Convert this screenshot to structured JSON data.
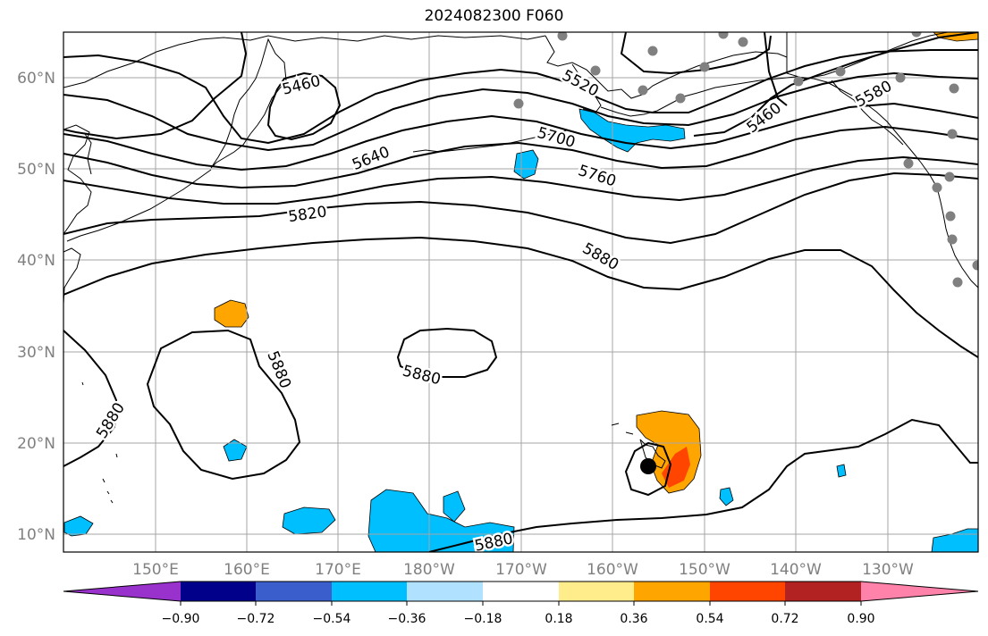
{
  "title": "2024082300 F060",
  "map": {
    "lat_labels": [
      "60°N",
      "50°N",
      "40°N",
      "30°N",
      "20°N",
      "10°N"
    ],
    "lon_labels": [
      "150°E",
      "160°E",
      "170°E",
      "180°W",
      "170°W",
      "160°W",
      "150°W",
      "140°W",
      "130°W"
    ],
    "contour_labels": [
      "5460",
      "5520",
      "5460",
      "5580",
      "5640",
      "5700",
      "5760",
      "5820",
      "5880",
      "5880",
      "5880",
      "5880",
      "5880"
    ],
    "colors": {
      "negative": "#00bfff",
      "positive": "#ffa500",
      "strong_positive": "#ff4500",
      "contour": "#000000",
      "station_marker": "#808080",
      "storm_marker": "#000000"
    }
  },
  "colorbar": {
    "colors": [
      "#9932cc",
      "#00008b",
      "#3a5fcd",
      "#00bfff",
      "#b0e2ff",
      "#ffffff",
      "#ffec8b",
      "#ffa500",
      "#ff4500",
      "#b22222",
      "#ff82ab"
    ],
    "labels": [
      "−0.90",
      "−0.72",
      "−0.54",
      "−0.36",
      "−0.18",
      "0.18",
      "0.36",
      "0.54",
      "0.72",
      "0.90"
    ]
  }
}
